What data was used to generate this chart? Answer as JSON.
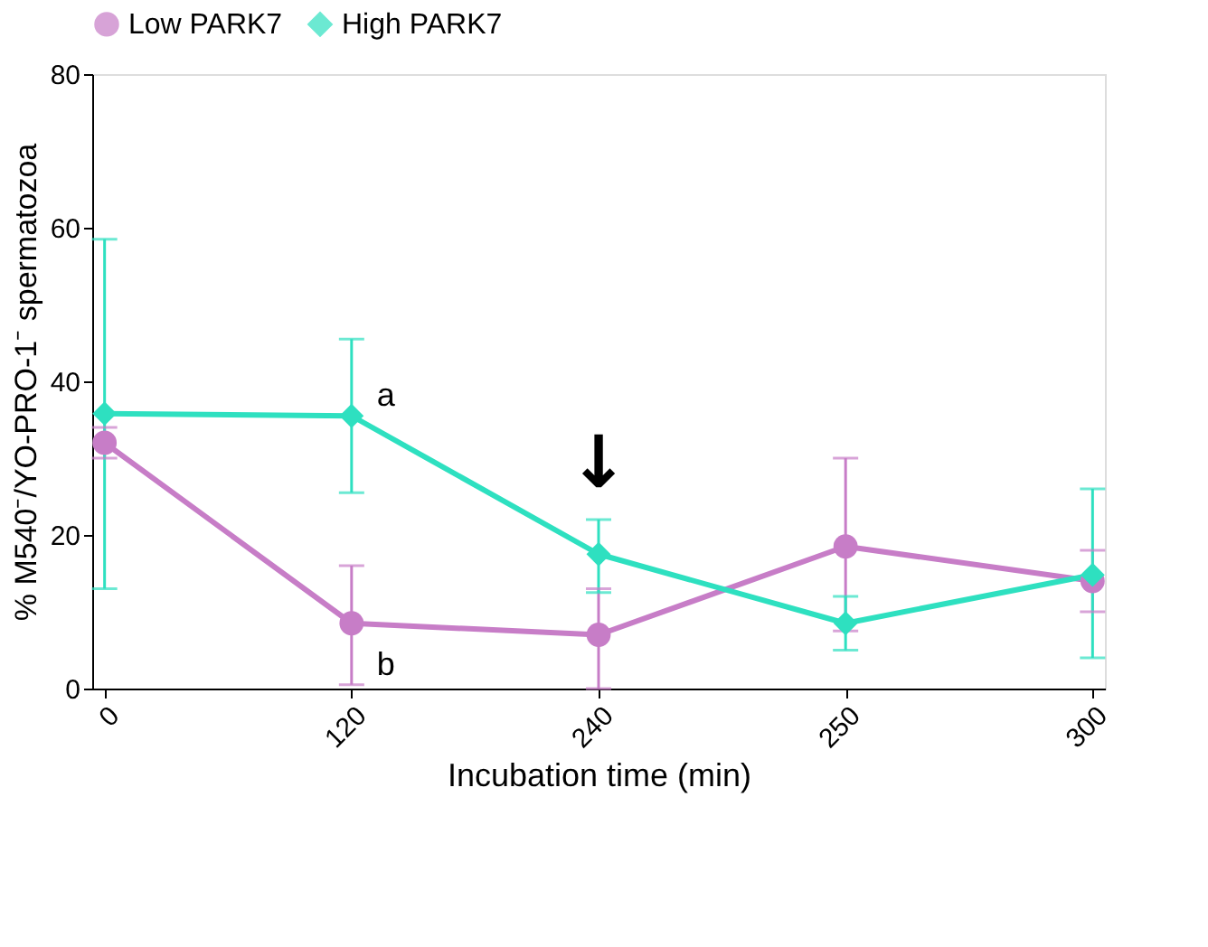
{
  "chart_data": {
    "type": "line",
    "xlabel": "Incubation time (min)",
    "ylabel": "% M540⁻/YO-PRO-1⁻ spermatozoa",
    "categories": [
      "0",
      "120",
      "240",
      "250",
      "300"
    ],
    "series": [
      {
        "name": "Low PARK7",
        "color": "#c77dc7",
        "marker": "circle",
        "values": [
          32,
          8.5,
          7,
          18.5,
          14
        ],
        "errors": [
          [
            30,
            34
          ],
          [
            0.5,
            16
          ],
          [
            0,
            13
          ],
          [
            7.5,
            30
          ],
          [
            10,
            18
          ]
        ]
      },
      {
        "name": "High PARK7",
        "color": "#2ee0c0",
        "marker": "diamond",
        "values": [
          35.8,
          35.5,
          17.5,
          8.5,
          14.8
        ],
        "errors": [
          [
            13,
            58.5
          ],
          [
            25.5,
            45.5
          ],
          [
            12.5,
            22
          ],
          [
            5,
            12
          ],
          [
            4,
            26
          ]
        ]
      }
    ],
    "annotations": [
      {
        "text": "a",
        "x": "120",
        "y": 38
      },
      {
        "text": "b",
        "x": "120",
        "y": 3
      },
      {
        "text": "↓",
        "x": "240",
        "y": 22
      }
    ],
    "ylim": [
      0,
      80
    ],
    "yticks": [
      0,
      20,
      40,
      60,
      80
    ],
    "grid": false,
    "legend": "top"
  }
}
